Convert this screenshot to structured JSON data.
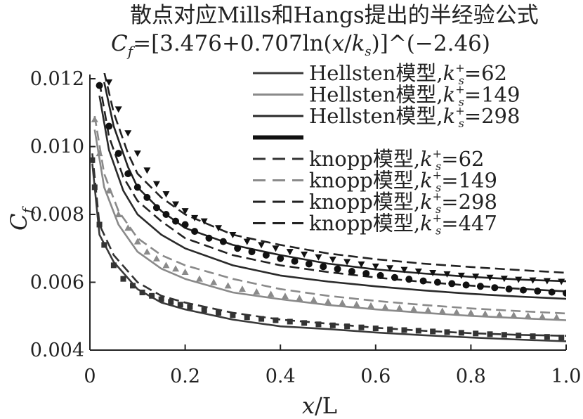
{
  "chart_data": {
    "type": "line",
    "title": "散点对应Mills和Hangs提出的半经验公式",
    "subtitle": "C_f=[3.476+0.707ln(x/k_s)]^(−2.46)",
    "subtitle_parts": {
      "c": "C",
      "f": "f",
      "eq": "=[3.476+0.707ln(",
      "x": "x",
      "slash": "/",
      "k": "k",
      "s": "s",
      "tail": ")]^(−2.46)"
    },
    "xlabel": "x/L",
    "ylabel": "C_f",
    "xlim": [
      0,
      1.0
    ],
    "ylim": [
      0.004,
      0.012
    ],
    "xticks": [
      "0",
      "0.2",
      "0.4",
      "0.6",
      "0.8",
      "1.0"
    ],
    "yticks": [
      "0.004",
      "0.006",
      "0.008",
      "0.010",
      "0.012"
    ],
    "legend_position": "top-right",
    "legend": [
      {
        "model": "Hellsten模型,",
        "ks": "=62",
        "style": "solid",
        "color": "#3a3a3a",
        "width": 3
      },
      {
        "model": "Hellsten模型,",
        "ks": "=149",
        "style": "solid",
        "color": "#8a8a8a",
        "width": 3
      },
      {
        "model": "Hellsten模型,",
        "ks": "=298",
        "style": "solid",
        "color": "#2a2a2a",
        "width": 3
      },
      {
        "model": "",
        "ks": "",
        "style": "solid",
        "color": "#111111",
        "width": 6
      },
      {
        "model": "knopp模型,",
        "ks": "=62",
        "style": "dashed",
        "color": "#333333",
        "width": 3
      },
      {
        "model": "knopp模型,",
        "ks": "=149",
        "style": "dashed",
        "color": "#8a8a8a",
        "width": 3
      },
      {
        "model": "knopp模型,",
        "ks": "=298",
        "style": "dashed",
        "color": "#222222",
        "width": 3
      },
      {
        "model": "knopp模型,",
        "ks": "=447",
        "style": "dashed",
        "color": "#222222",
        "width": 3
      }
    ],
    "ks_label": {
      "k": "k",
      "sup": "+",
      "sub": "s"
    },
    "series": [
      {
        "ks": 62,
        "model": "Hellsten",
        "style": "solid",
        "color": "#3a3a3a",
        "x": [
          0.005,
          0.02,
          0.05,
          0.1,
          0.15,
          0.2,
          0.3,
          0.4,
          0.5,
          0.6,
          0.7,
          0.8,
          0.9,
          1.0
        ],
        "y": [
          0.0095,
          0.0074,
          0.0066,
          0.0058,
          0.0054,
          0.0052,
          0.0049,
          0.0047,
          0.00462,
          0.00452,
          0.00444,
          0.00437,
          0.00431,
          0.00426
        ]
      },
      {
        "ks": 149,
        "model": "Hellsten",
        "style": "solid",
        "color": "#8a8a8a",
        "x": [
          0.01,
          0.03,
          0.06,
          0.1,
          0.15,
          0.2,
          0.3,
          0.4,
          0.5,
          0.6,
          0.7,
          0.8,
          0.9,
          1.0
        ],
        "y": [
          0.0105,
          0.0088,
          0.0077,
          0.0069,
          0.0064,
          0.0061,
          0.0057,
          0.0055,
          0.00533,
          0.0052,
          0.0051,
          0.00501,
          0.00494,
          0.00488
        ]
      },
      {
        "ks": 298,
        "model": "Hellsten",
        "style": "solid",
        "color": "#2a2a2a",
        "x": [
          0.02,
          0.04,
          0.07,
          0.1,
          0.15,
          0.2,
          0.3,
          0.4,
          0.5,
          0.6,
          0.7,
          0.8,
          0.9,
          1.0
        ],
        "y": [
          0.0115,
          0.0099,
          0.0087,
          0.008,
          0.0074,
          0.007,
          0.0065,
          0.0062,
          0.00602,
          0.00588,
          0.00576,
          0.00566,
          0.00558,
          0.00551
        ]
      },
      {
        "ks": 447,
        "model": "Hellsten",
        "style": "solid",
        "color": "#222222",
        "x": [
          0.03,
          0.05,
          0.08,
          0.1,
          0.15,
          0.2,
          0.3,
          0.4,
          0.5,
          0.6,
          0.7,
          0.8,
          0.9,
          1.0
        ],
        "y": [
          0.0119,
          0.0106,
          0.0094,
          0.0088,
          0.0081,
          0.0076,
          0.0071,
          0.0068,
          0.00655,
          0.00638,
          0.00626,
          0.00616,
          0.00608,
          0.00603
        ]
      },
      {
        "ks": 62,
        "model": "knopp",
        "style": "dashed",
        "color": "#333333",
        "x": [
          0.005,
          0.02,
          0.05,
          0.1,
          0.15,
          0.2,
          0.3,
          0.4,
          0.5,
          0.6,
          0.7,
          0.8,
          0.9,
          1.0
        ],
        "y": [
          0.0098,
          0.0077,
          0.0068,
          0.006,
          0.0056,
          0.0054,
          0.0051,
          0.0049,
          0.00478,
          0.00466,
          0.00457,
          0.0045,
          0.00445,
          0.00442
        ]
      },
      {
        "ks": 149,
        "model": "knopp",
        "style": "dashed",
        "color": "#8a8a8a",
        "x": [
          0.01,
          0.03,
          0.06,
          0.1,
          0.15,
          0.2,
          0.3,
          0.4,
          0.5,
          0.6,
          0.7,
          0.8,
          0.9,
          1.0
        ],
        "y": [
          0.0109,
          0.0092,
          0.0081,
          0.0073,
          0.0068,
          0.0065,
          0.0061,
          0.0058,
          0.0056,
          0.00545,
          0.00533,
          0.00523,
          0.00515,
          0.00508
        ]
      },
      {
        "ks": 298,
        "model": "knopp",
        "style": "dashed",
        "color": "#222222",
        "x": [
          0.02,
          0.04,
          0.07,
          0.1,
          0.15,
          0.2,
          0.3,
          0.4,
          0.5,
          0.6,
          0.7,
          0.8,
          0.9,
          1.0
        ],
        "y": [
          0.0119,
          0.0103,
          0.0091,
          0.0084,
          0.0078,
          0.0073,
          0.0068,
          0.0065,
          0.0063,
          0.00614,
          0.00601,
          0.0059,
          0.00581,
          0.00573
        ]
      },
      {
        "ks": 447,
        "model": "knopp",
        "style": "dashed",
        "color": "#222222",
        "x": [
          0.03,
          0.05,
          0.08,
          0.1,
          0.15,
          0.2,
          0.3,
          0.4,
          0.5,
          0.6,
          0.7,
          0.8,
          0.9,
          1.0
        ],
        "y": [
          0.0122,
          0.011,
          0.0098,
          0.0092,
          0.0085,
          0.008,
          0.0074,
          0.0071,
          0.00685,
          0.00668,
          0.00655,
          0.00645,
          0.00636,
          0.00628
        ]
      }
    ],
    "scatter": [
      {
        "ks": 62,
        "marker": "square",
        "color": "#333333",
        "x": [
          0.005,
          0.01,
          0.02,
          0.03,
          0.05,
          0.07,
          0.09,
          0.11,
          0.13,
          0.15,
          0.17,
          0.19,
          0.21,
          0.24,
          0.27,
          0.3,
          0.33,
          0.36,
          0.39,
          0.42,
          0.45,
          0.48,
          0.51,
          0.54,
          0.57,
          0.6,
          0.63,
          0.66,
          0.69,
          0.72,
          0.75,
          0.78,
          0.81,
          0.84,
          0.87,
          0.9,
          0.93,
          0.96,
          0.99
        ],
        "y": [
          0.0096,
          0.0088,
          0.0077,
          0.0071,
          0.0065,
          0.0061,
          0.0059,
          0.0057,
          0.0056,
          0.0055,
          0.00542,
          0.00534,
          0.00527,
          0.00518,
          0.0051,
          0.00503,
          0.00497,
          0.00492,
          0.00488,
          0.00484,
          0.0048,
          0.00476,
          0.00473,
          0.0047,
          0.00467,
          0.00464,
          0.00461,
          0.00459,
          0.00457,
          0.00455,
          0.00453,
          0.00451,
          0.00449,
          0.00447,
          0.00445,
          0.00443,
          0.00441,
          0.00439,
          0.00437
        ]
      },
      {
        "ks": 149,
        "marker": "triangle",
        "color": "#8a8a8a",
        "x": [
          0.01,
          0.02,
          0.04,
          0.06,
          0.08,
          0.1,
          0.12,
          0.14,
          0.16,
          0.18,
          0.2,
          0.23,
          0.26,
          0.29,
          0.32,
          0.35,
          0.38,
          0.41,
          0.44,
          0.47,
          0.5,
          0.53,
          0.56,
          0.59,
          0.62,
          0.65,
          0.68,
          0.71,
          0.74,
          0.77,
          0.8,
          0.83,
          0.86,
          0.89,
          0.92,
          0.95,
          0.98
        ],
        "y": [
          0.0108,
          0.0098,
          0.0087,
          0.008,
          0.0076,
          0.0072,
          0.0069,
          0.0067,
          0.0065,
          0.0064,
          0.0063,
          0.0061,
          0.006,
          0.0059,
          0.0058,
          0.00572,
          0.00565,
          0.00559,
          0.00553,
          0.00548,
          0.00543,
          0.00539,
          0.00535,
          0.00531,
          0.00527,
          0.00524,
          0.00521,
          0.00518,
          0.00515,
          0.00512,
          0.0051,
          0.00507,
          0.00505,
          0.00503,
          0.00501,
          0.00499,
          0.00497
        ]
      },
      {
        "ks": 298,
        "marker": "circle",
        "color": "#111111",
        "x": [
          0.02,
          0.04,
          0.06,
          0.08,
          0.1,
          0.12,
          0.14,
          0.16,
          0.18,
          0.2,
          0.22,
          0.25,
          0.28,
          0.31,
          0.34,
          0.37,
          0.4,
          0.43,
          0.46,
          0.49,
          0.52,
          0.55,
          0.58,
          0.61,
          0.64,
          0.67,
          0.7,
          0.73,
          0.76,
          0.79,
          0.82,
          0.85,
          0.88,
          0.91,
          0.94,
          0.97,
          1.0
        ],
        "y": [
          0.0118,
          0.0106,
          0.0098,
          0.0092,
          0.0088,
          0.0085,
          0.0082,
          0.008,
          0.0078,
          0.0077,
          0.0075,
          0.0073,
          0.0072,
          0.007,
          0.0069,
          0.0068,
          0.0067,
          0.00662,
          0.00654,
          0.00646,
          0.00639,
          0.00632,
          0.00626,
          0.0062,
          0.00614,
          0.00609,
          0.00604,
          0.006,
          0.00596,
          0.00592,
          0.00588,
          0.00584,
          0.0058,
          0.00577,
          0.00574,
          0.00571,
          0.00568
        ]
      },
      {
        "ks": 447,
        "marker": "triangle-down",
        "color": "#111111",
        "x": [
          0.04,
          0.06,
          0.08,
          0.1,
          0.12,
          0.14,
          0.16,
          0.18,
          0.2,
          0.22,
          0.24,
          0.27,
          0.3,
          0.33,
          0.36,
          0.39,
          0.42,
          0.45,
          0.48,
          0.51,
          0.54,
          0.57,
          0.6,
          0.63,
          0.66,
          0.69,
          0.72,
          0.75,
          0.78,
          0.81,
          0.84,
          0.87,
          0.9,
          0.93,
          0.96,
          0.99
        ],
        "y": [
          0.0119,
          0.0111,
          0.0104,
          0.0098,
          0.0093,
          0.0089,
          0.0086,
          0.0083,
          0.0081,
          0.0079,
          0.0078,
          0.0076,
          0.0074,
          0.0072,
          0.0071,
          0.007,
          0.0069,
          0.00682,
          0.00674,
          0.00667,
          0.0066,
          0.00653,
          0.00647,
          0.00642,
          0.00637,
          0.00632,
          0.00628,
          0.00624,
          0.0062,
          0.00617,
          0.00614,
          0.00611,
          0.00608,
          0.00606,
          0.00604,
          0.00602
        ]
      }
    ]
  }
}
